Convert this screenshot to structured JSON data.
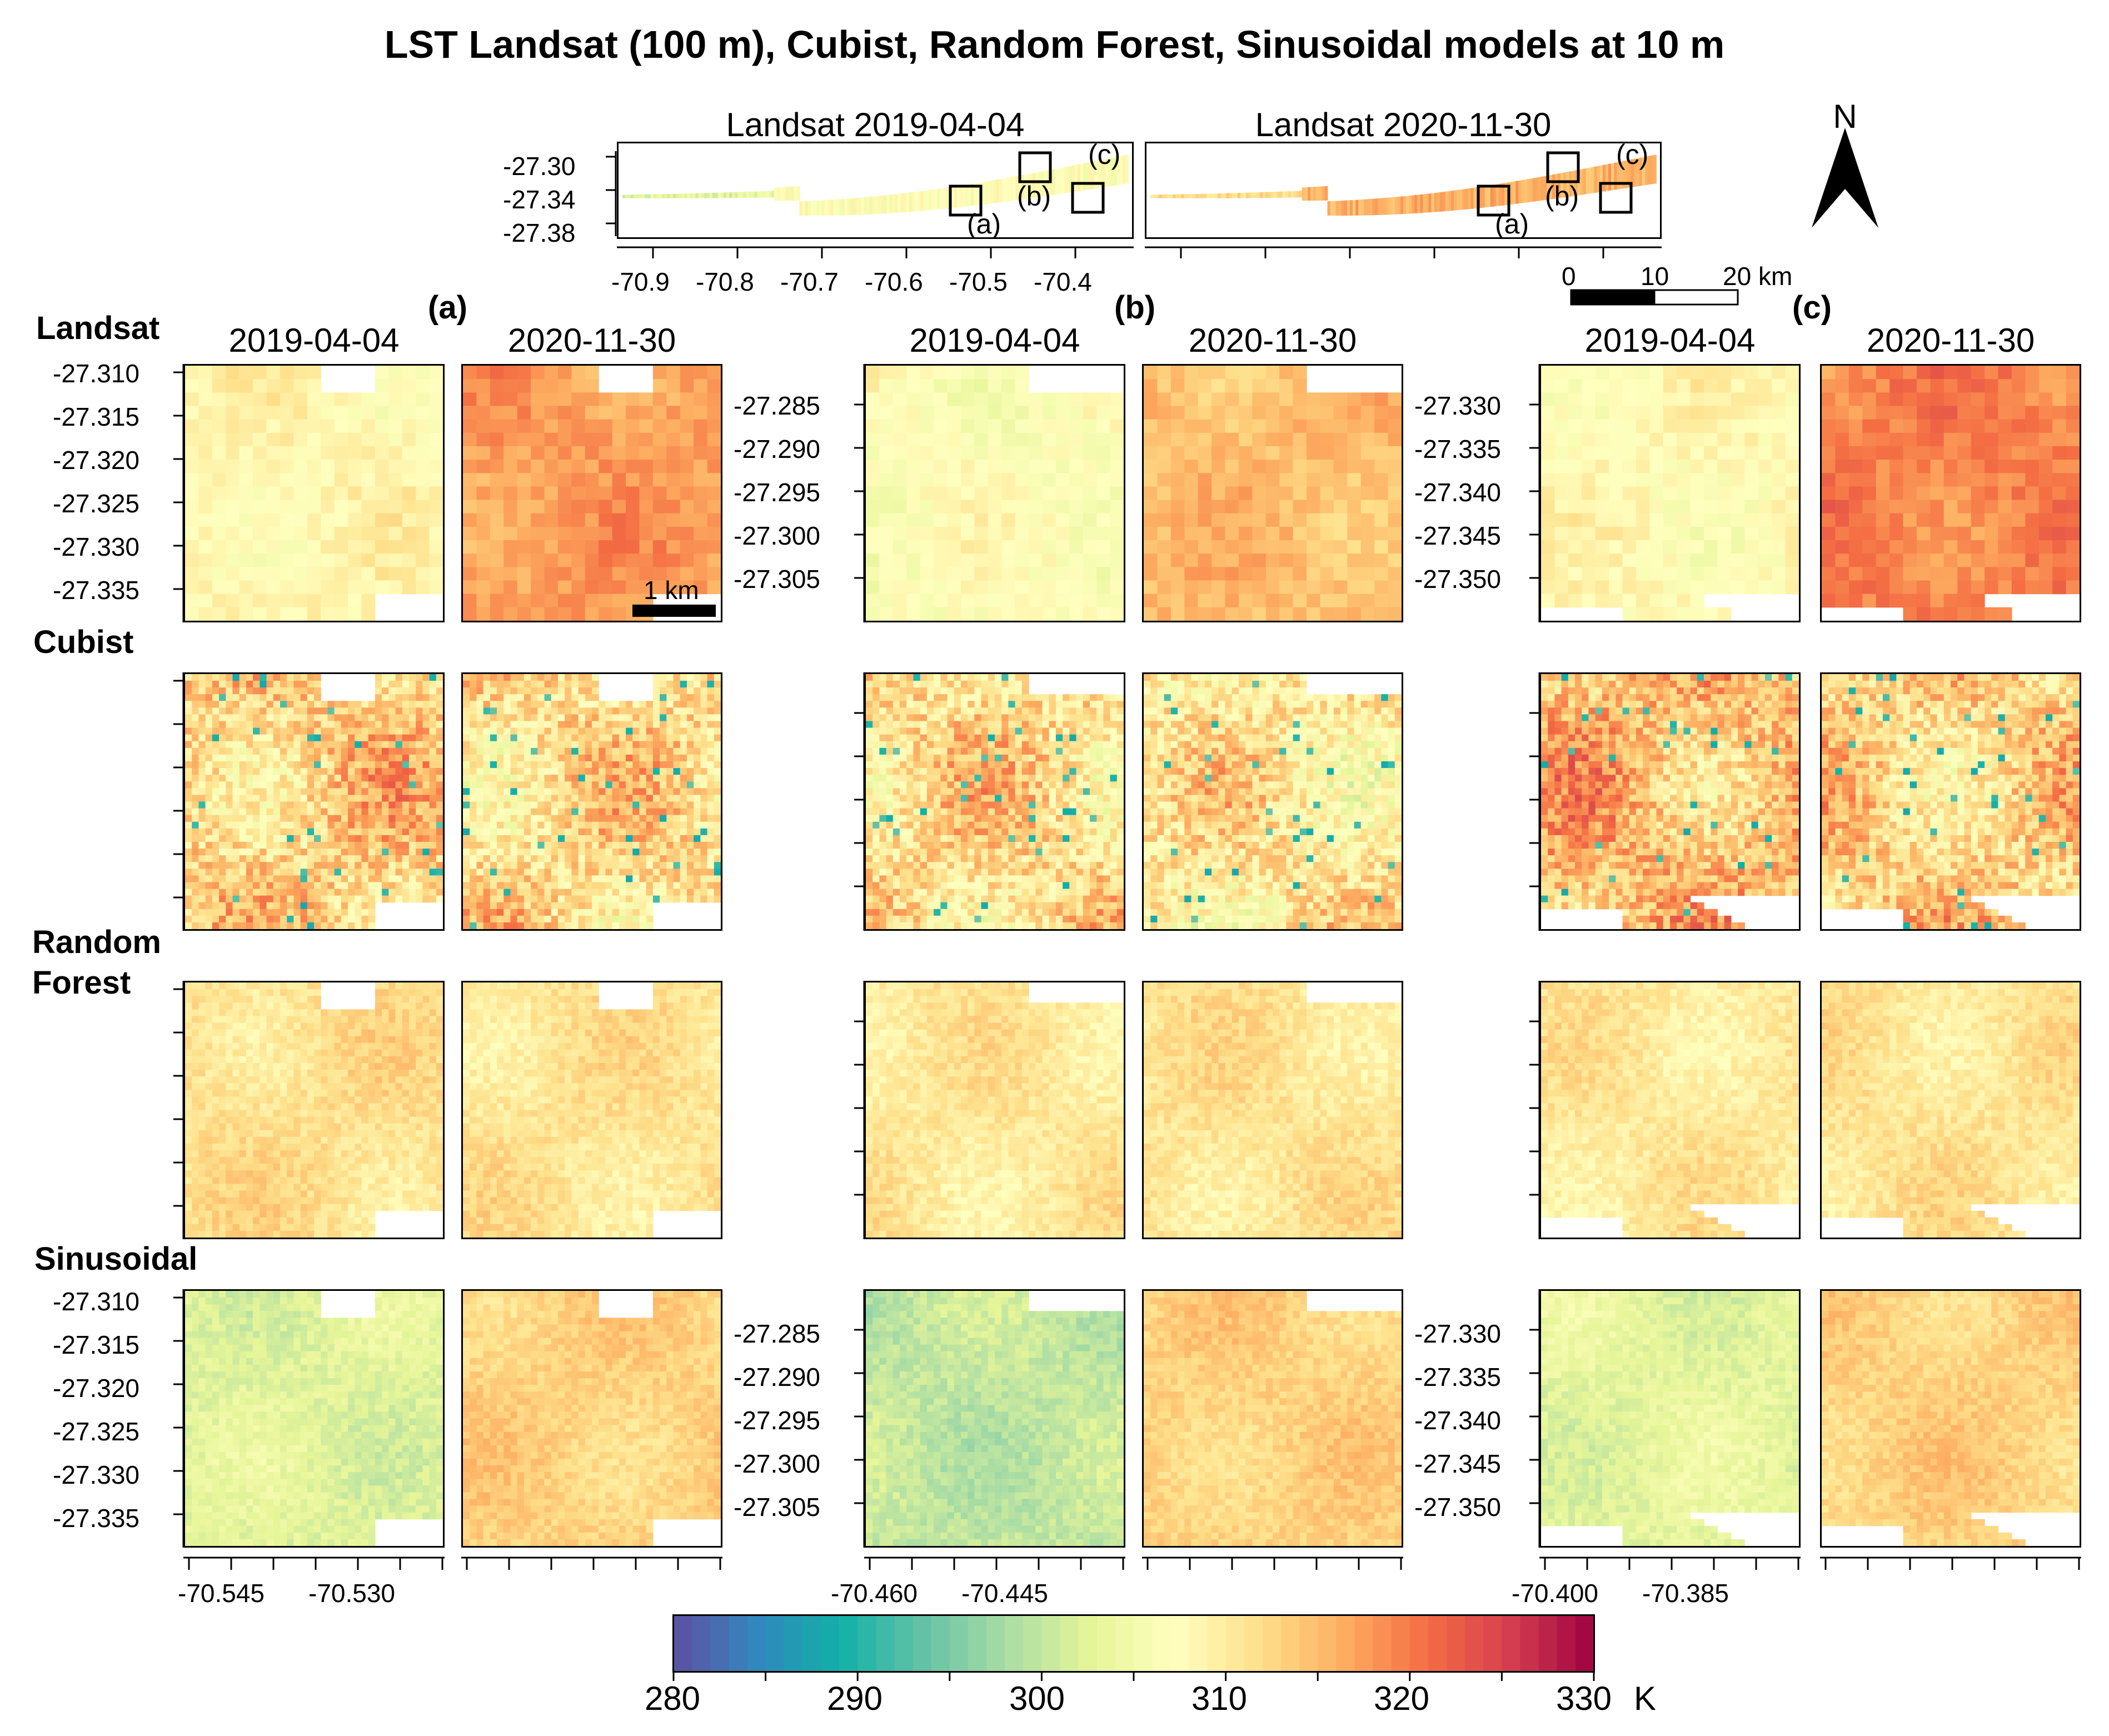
{
  "title": "LST Landsat (100 m), Cubist, Random Forest, Sinusoidal models at 10 m",
  "north_label": "N",
  "scale_bar": {
    "labels": [
      "0",
      "10",
      "20 km"
    ]
  },
  "panel_scale_label": "1 km",
  "overview_maps": [
    {
      "title": "Landsat 2019-04-04",
      "boxes": [
        "(a)",
        "(b)",
        "(c)"
      ]
    },
    {
      "title": "Landsat 2020-11-30",
      "boxes": [
        "(a)",
        "(b)",
        "(c)"
      ]
    }
  ],
  "overview_y_ticks": [
    "-27.30",
    "-27.34",
    "-27.38"
  ],
  "overview_x_ticks": [
    "-70.9",
    "-70.8",
    "-70.7",
    "-70.6",
    "-70.5",
    "-70.4"
  ],
  "rows": [
    "Landsat",
    "Cubist",
    "Random Forest",
    "Sinusoidal"
  ],
  "row_labels": {
    "landsat": "Landsat",
    "cubist": "Cubist",
    "rf1": "Random",
    "rf2": "Forest",
    "sin": "Sinusoidal"
  },
  "columns": [
    "2019-04-04",
    "2020-11-30"
  ],
  "areas": [
    {
      "label": "(a)",
      "dates": [
        "2019-04-04",
        "2020-11-30"
      ],
      "y_ticks": [
        "-27.310",
        "-27.315",
        "-27.320",
        "-27.325",
        "-27.330",
        "-27.335"
      ],
      "x_ticks": [
        "-70.545",
        "-70.530"
      ]
    },
    {
      "label": "(b)",
      "dates": [
        "2019-04-04",
        "2020-11-30"
      ],
      "y_ticks": [
        "-27.285",
        "-27.290",
        "-27.295",
        "-27.300",
        "-27.305"
      ],
      "x_ticks": [
        "-70.460",
        "-70.445"
      ]
    },
    {
      "label": "(c)",
      "dates": [
        "2019-04-04",
        "2020-11-30"
      ],
      "y_ticks": [
        "-27.330",
        "-27.335",
        "-27.340",
        "-27.345",
        "-27.350"
      ],
      "x_ticks": [
        "-70.400",
        "-70.385"
      ]
    }
  ],
  "colorbar": {
    "ticks": [
      "280",
      "290",
      "300",
      "310",
      "320",
      "330"
    ],
    "unit": "K",
    "range": [
      280,
      330
    ],
    "colors": [
      "#5e4fa2",
      "#3288bd",
      "#11b0a8",
      "#66c2a5",
      "#abdda4",
      "#e6f598",
      "#ffffbf",
      "#fee08b",
      "#fdae61",
      "#f46d43",
      "#d53e4f",
      "#9e0142"
    ]
  },
  "panel_means": {
    "landsat": [
      308.5,
      317.5,
      307.0,
      315.0,
      308.0,
      319.5
    ],
    "cubist": [
      313.0,
      312.0,
      312.0,
      310.5,
      315.0,
      313.0
    ],
    "rf": [
      311.5,
      311.0,
      310.5,
      311.0,
      310.5,
      311.0
    ],
    "sinusoidal": [
      302.5,
      313.0,
      300.0,
      313.0,
      303.0,
      313.0
    ]
  }
}
